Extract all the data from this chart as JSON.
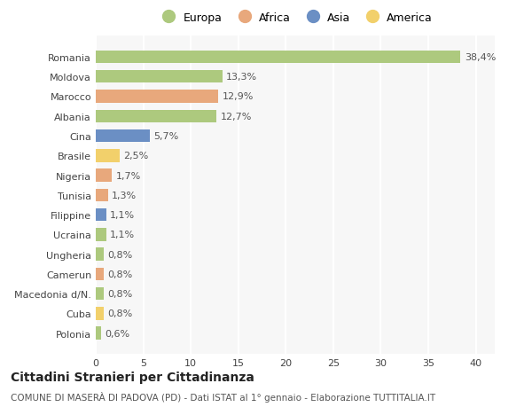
{
  "categories": [
    "Romania",
    "Moldova",
    "Marocco",
    "Albania",
    "Cina",
    "Brasile",
    "Nigeria",
    "Tunisia",
    "Filippine",
    "Ucraina",
    "Ungheria",
    "Camerun",
    "Macedonia d/N.",
    "Cuba",
    "Polonia"
  ],
  "values": [
    38.4,
    13.3,
    12.9,
    12.7,
    5.7,
    2.5,
    1.7,
    1.3,
    1.1,
    1.1,
    0.8,
    0.8,
    0.8,
    0.8,
    0.6
  ],
  "labels": [
    "38,4%",
    "13,3%",
    "12,9%",
    "12,7%",
    "5,7%",
    "2,5%",
    "1,7%",
    "1,3%",
    "1,1%",
    "1,1%",
    "0,8%",
    "0,8%",
    "0,8%",
    "0,8%",
    "0,6%"
  ],
  "continents": [
    "Europa",
    "Europa",
    "Africa",
    "Europa",
    "Asia",
    "America",
    "Africa",
    "Africa",
    "Asia",
    "Europa",
    "Europa",
    "Africa",
    "Europa",
    "America",
    "Europa"
  ],
  "continent_colors": {
    "Europa": "#adc97e",
    "Africa": "#e8a87c",
    "Asia": "#6b8fc4",
    "America": "#f2d06b"
  },
  "legend_order": [
    "Europa",
    "Africa",
    "Asia",
    "America"
  ],
  "title": "Cittadini Stranieri per Cittadinanza",
  "subtitle": "COMUNE DI MASERÀ DI PADOVA (PD) - Dati ISTAT al 1° gennaio - Elaborazione TUTTITALIA.IT",
  "xlim": [
    0,
    42
  ],
  "xticks": [
    0,
    5,
    10,
    15,
    20,
    25,
    30,
    35,
    40
  ],
  "bg_color": "#ffffff",
  "plot_bg_color": "#f7f7f7",
  "grid_color": "#ffffff",
  "bar_height": 0.65,
  "label_fontsize": 8,
  "tick_fontsize": 8,
  "title_fontsize": 10,
  "subtitle_fontsize": 7.5,
  "legend_fontsize": 9
}
